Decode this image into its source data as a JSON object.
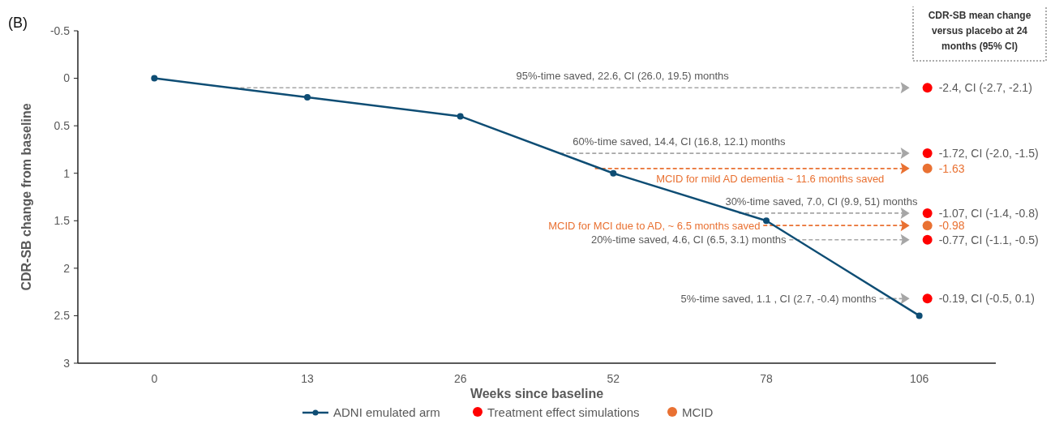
{
  "chart_data": {
    "type": "line",
    "xlabel": "Weeks since baseline",
    "ylabel": "CDR-SB change from baseline",
    "categories": [
      "0",
      "13",
      "26",
      "52",
      "78",
      "106"
    ],
    "ylim": [
      3,
      -0.5
    ],
    "yticks": [
      -0.5,
      0,
      0.5,
      1,
      1.5,
      2,
      2.5,
      3
    ],
    "series": [
      {
        "name": "ADNI emulated arm",
        "color": "#0e4d74",
        "values": [
          0,
          0.2,
          0.4,
          1,
          1.5,
          2.5
        ]
      },
      {
        "name": "Treatment effect simulations",
        "type": "scatter",
        "color": "#ff0000",
        "x": [
          "106",
          "106",
          "106",
          "106",
          "106"
        ],
        "values": [
          0.1,
          0.79,
          1.42,
          1.7,
          2.32
        ]
      },
      {
        "name": "MCID",
        "type": "scatter",
        "color": "#e97132",
        "x": [
          "106",
          "106"
        ],
        "values": [
          0.95,
          1.55
        ]
      }
    ],
    "annotations": [
      "(B)",
      "CDR-SB mean change versus placebo at 24 months (95% CI)",
      "95%-time saved, 22.6, CI (26.0, 19.5) months",
      "60%-time saved, 14.4, CI (16.8, 12.1) months",
      "MCID for mild AD dementia ~ 11.6 months saved",
      "30%-time saved, 7.0, CI (9.9, 51) months",
      "MCID for MCI due to AD, ~ 6.5 months saved",
      "20%-time saved, 4.6, CI (6.5, 3.1) months",
      "5%-time saved, 1.1 , CI (2.7, -0.4) months",
      "-2.4, CI (-2.7, -2.1)",
      "-1.72, CI (-2.0, -1.5)",
      "-1.63",
      "-1.07, CI (-1.4, -0.8)",
      "-0.98",
      "-0.77, CI (-1.1, -0.5)",
      "-0.19, CI (-0.5, 0.1)"
    ],
    "marker": "circle",
    "line_style": "solid",
    "grid": false,
    "legend": "bottom"
  }
}
